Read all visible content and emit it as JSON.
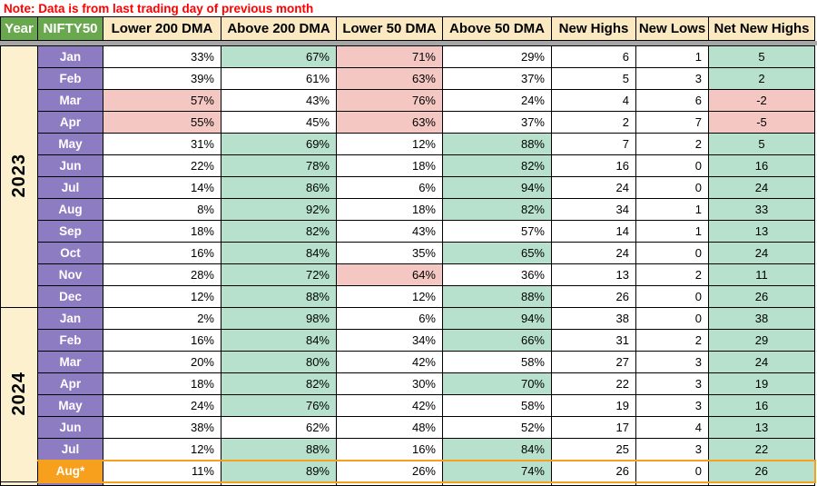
{
  "note": "Note: Data is from last trading day of previous month",
  "colors": {
    "header_green": "#6aa84f",
    "header_cream": "#fbe9c2",
    "month_purple": "#8e7cc3",
    "year_cream": "#fcf0cf",
    "positive_green": "#b7e1cd",
    "negative_pink": "#f4c7c3",
    "highlight_orange": "#f6a01e",
    "note_red": "#ff0000",
    "freeze_divider_gray": "#a6a6a6"
  },
  "table": {
    "headers": [
      {
        "label": "Year",
        "variant": "green"
      },
      {
        "label": "NIFTY50",
        "variant": "green"
      },
      {
        "label": "Lower 200 DMA",
        "variant": "cream"
      },
      {
        "label": "Above 200 DMA",
        "variant": "cream"
      },
      {
        "label": "Lower 50 DMA",
        "variant": "cream"
      },
      {
        "label": "Above 50 DMA",
        "variant": "cream"
      },
      {
        "label": "New Highs",
        "variant": "cream"
      },
      {
        "label": "New Lows",
        "variant": "cream"
      },
      {
        "label": "Net New Highs",
        "variant": "cream"
      }
    ],
    "year_groups": [
      {
        "year": "2023",
        "rows": [
          {
            "month": "Jan",
            "cells": [
              [
                "33%",
                "w"
              ],
              [
                "67%",
                "g"
              ],
              [
                "71%",
                "p"
              ],
              [
                "29%",
                "w"
              ],
              [
                "6",
                "w"
              ],
              [
                "1",
                "w"
              ],
              [
                "5",
                "g"
              ]
            ]
          },
          {
            "month": "Feb",
            "cells": [
              [
                "39%",
                "w"
              ],
              [
                "61%",
                "w"
              ],
              [
                "63%",
                "p"
              ],
              [
                "37%",
                "w"
              ],
              [
                "5",
                "w"
              ],
              [
                "3",
                "w"
              ],
              [
                "2",
                "g"
              ]
            ]
          },
          {
            "month": "Mar",
            "cells": [
              [
                "57%",
                "p"
              ],
              [
                "43%",
                "w"
              ],
              [
                "76%",
                "p"
              ],
              [
                "24%",
                "w"
              ],
              [
                "4",
                "w"
              ],
              [
                "6",
                "w"
              ],
              [
                "-2",
                "p"
              ]
            ]
          },
          {
            "month": "Apr",
            "cells": [
              [
                "55%",
                "p"
              ],
              [
                "45%",
                "w"
              ],
              [
                "63%",
                "p"
              ],
              [
                "37%",
                "w"
              ],
              [
                "2",
                "w"
              ],
              [
                "7",
                "w"
              ],
              [
                "-5",
                "p"
              ]
            ]
          },
          {
            "month": "May",
            "cells": [
              [
                "31%",
                "w"
              ],
              [
                "69%",
                "g"
              ],
              [
                "12%",
                "w"
              ],
              [
                "88%",
                "g"
              ],
              [
                "7",
                "w"
              ],
              [
                "2",
                "w"
              ],
              [
                "5",
                "g"
              ]
            ]
          },
          {
            "month": "Jun",
            "cells": [
              [
                "22%",
                "w"
              ],
              [
                "78%",
                "g"
              ],
              [
                "18%",
                "w"
              ],
              [
                "82%",
                "g"
              ],
              [
                "16",
                "w"
              ],
              [
                "0",
                "w"
              ],
              [
                "16",
                "g"
              ]
            ]
          },
          {
            "month": "Jul",
            "cells": [
              [
                "14%",
                "w"
              ],
              [
                "86%",
                "g"
              ],
              [
                "6%",
                "w"
              ],
              [
                "94%",
                "g"
              ],
              [
                "24",
                "w"
              ],
              [
                "0",
                "w"
              ],
              [
                "24",
                "g"
              ]
            ]
          },
          {
            "month": "Aug",
            "cells": [
              [
                "8%",
                "w"
              ],
              [
                "92%",
                "g"
              ],
              [
                "18%",
                "w"
              ],
              [
                "82%",
                "g"
              ],
              [
                "34",
                "w"
              ],
              [
                "1",
                "w"
              ],
              [
                "33",
                "g"
              ]
            ]
          },
          {
            "month": "Sep",
            "cells": [
              [
                "18%",
                "w"
              ],
              [
                "82%",
                "g"
              ],
              [
                "43%",
                "w"
              ],
              [
                "57%",
                "w"
              ],
              [
                "14",
                "w"
              ],
              [
                "1",
                "w"
              ],
              [
                "13",
                "g"
              ]
            ]
          },
          {
            "month": "Oct",
            "cells": [
              [
                "16%",
                "w"
              ],
              [
                "84%",
                "g"
              ],
              [
                "35%",
                "w"
              ],
              [
                "65%",
                "g"
              ],
              [
                "24",
                "w"
              ],
              [
                "0",
                "w"
              ],
              [
                "24",
                "g"
              ]
            ]
          },
          {
            "month": "Nov",
            "cells": [
              [
                "28%",
                "w"
              ],
              [
                "72%",
                "g"
              ],
              [
                "64%",
                "p"
              ],
              [
                "36%",
                "w"
              ],
              [
                "13",
                "w"
              ],
              [
                "2",
                "w"
              ],
              [
                "11",
                "g"
              ]
            ]
          },
          {
            "month": "Dec",
            "cells": [
              [
                "12%",
                "w"
              ],
              [
                "88%",
                "g"
              ],
              [
                "12%",
                "w"
              ],
              [
                "88%",
                "g"
              ],
              [
                "26",
                "w"
              ],
              [
                "0",
                "w"
              ],
              [
                "26",
                "g"
              ]
            ]
          }
        ]
      },
      {
        "year": "2024",
        "rows": [
          {
            "month": "Jan",
            "cells": [
              [
                "2%",
                "w"
              ],
              [
                "98%",
                "g"
              ],
              [
                "6%",
                "w"
              ],
              [
                "94%",
                "g"
              ],
              [
                "38",
                "w"
              ],
              [
                "0",
                "w"
              ],
              [
                "38",
                "g"
              ]
            ]
          },
          {
            "month": "Feb",
            "cells": [
              [
                "16%",
                "w"
              ],
              [
                "84%",
                "g"
              ],
              [
                "34%",
                "w"
              ],
              [
                "66%",
                "g"
              ],
              [
                "31",
                "w"
              ],
              [
                "2",
                "w"
              ],
              [
                "29",
                "g"
              ]
            ]
          },
          {
            "month": "Mar",
            "cells": [
              [
                "20%",
                "w"
              ],
              [
                "80%",
                "g"
              ],
              [
                "42%",
                "w"
              ],
              [
                "58%",
                "w"
              ],
              [
                "27",
                "w"
              ],
              [
                "3",
                "w"
              ],
              [
                "24",
                "g"
              ]
            ]
          },
          {
            "month": "Apr",
            "cells": [
              [
                "18%",
                "w"
              ],
              [
                "82%",
                "g"
              ],
              [
                "30%",
                "w"
              ],
              [
                "70%",
                "g"
              ],
              [
                "22",
                "w"
              ],
              [
                "3",
                "w"
              ],
              [
                "19",
                "g"
              ]
            ]
          },
          {
            "month": "May",
            "cells": [
              [
                "24%",
                "w"
              ],
              [
                "76%",
                "g"
              ],
              [
                "42%",
                "w"
              ],
              [
                "58%",
                "w"
              ],
              [
                "19",
                "w"
              ],
              [
                "3",
                "w"
              ],
              [
                "16",
                "g"
              ]
            ]
          },
          {
            "month": "Jun",
            "cells": [
              [
                "38%",
                "w"
              ],
              [
                "62%",
                "w"
              ],
              [
                "48%",
                "w"
              ],
              [
                "52%",
                "w"
              ],
              [
                "17",
                "w"
              ],
              [
                "4",
                "w"
              ],
              [
                "13",
                "g"
              ]
            ]
          },
          {
            "month": "Jul",
            "cells": [
              [
                "12%",
                "w"
              ],
              [
                "88%",
                "g"
              ],
              [
                "16%",
                "w"
              ],
              [
                "84%",
                "g"
              ],
              [
                "25",
                "w"
              ],
              [
                "3",
                "w"
              ],
              [
                "22",
                "g"
              ]
            ]
          },
          {
            "month": "Aug*",
            "highlight": true,
            "cells": [
              [
                "11%",
                "w"
              ],
              [
                "89%",
                "g"
              ],
              [
                "26%",
                "w"
              ],
              [
                "74%",
                "g"
              ],
              [
                "26",
                "w"
              ],
              [
                "0",
                "w"
              ],
              [
                "26",
                "g"
              ]
            ]
          }
        ]
      }
    ]
  }
}
